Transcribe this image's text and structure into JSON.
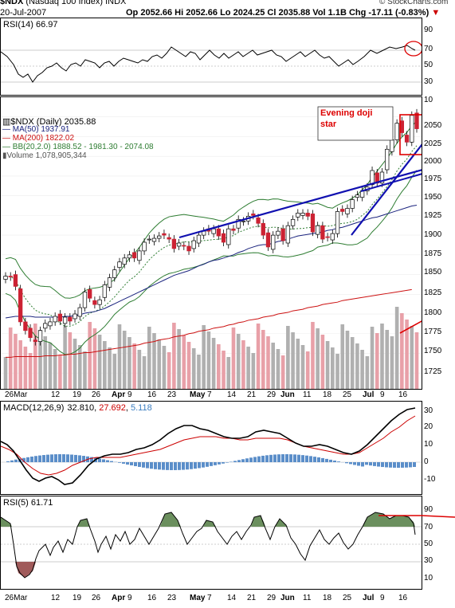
{
  "header": {
    "symbol": "$NDX",
    "index_name": "(Nasdaq 100 Index)",
    "exchange": "INDX",
    "source": "© StockCharts.com",
    "date": "20-Jul-2007",
    "op_label": "Op",
    "op": "2052.66",
    "hi_label": "Hi",
    "hi": "2052.66",
    "lo_label": "Lo",
    "lo": "2024.25",
    "cl_label": "Cl",
    "cl": "2035.88",
    "vol_label": "Vol",
    "vol": "1.1B",
    "chg_label": "Chg",
    "chg": "-17.11 (-0.83%)"
  },
  "rsi14": {
    "label": "RSI(14) 66.97",
    "ticks": [
      "90",
      "70",
      "50",
      "30"
    ]
  },
  "main": {
    "legend_title": "$NDX (Daily) 2035.88",
    "ma50": "MA(50) 1937.91",
    "ma200": "MA(200) 1822.02",
    "bb": "BB(20,2.0) 1888.52 - 1981.30 - 2074.08",
    "volume": "Volume 1,078,905,344",
    "annotation": "Evening doji star",
    "ticks": [
      "10",
      "2050",
      "2025",
      "2000",
      "1975",
      "1950",
      "1925",
      "1900",
      "1875",
      "1850",
      "1825",
      "1800",
      "1775",
      "1750",
      "1725"
    ]
  },
  "macd": {
    "label_prefix": "MACD(12,26,9)",
    "v1": "32.810",
    "v2": "27.692",
    "v3": "5.118",
    "ticks": [
      "30",
      "20",
      "10",
      "0",
      "-10"
    ]
  },
  "rsi5": {
    "label": "RSI(5) 61.71",
    "ticks": [
      "90",
      "70",
      "50",
      "30",
      "10"
    ]
  },
  "xaxis": {
    "labels": [
      "26Mar",
      "12",
      "19",
      "26",
      "Apr",
      "9",
      "16",
      "23",
      "May",
      "7",
      "14",
      "21",
      "29",
      "Jun",
      "11",
      "18",
      "25",
      "Jul",
      "9",
      "16"
    ]
  },
  "colors": {
    "up": "#ffffff",
    "down": "#cc2233",
    "ma50": "#1a237e",
    "ma200": "#cc1111",
    "bb": "#2e7d32",
    "volume": "#b0b0b0",
    "volume_down": "#e8a0a8",
    "trendline": "#1010b0",
    "macd_hist": "#5b8ec9",
    "rsi_fill_up": "#6b8f5e",
    "rsi_fill_down": "#a05a5a"
  },
  "chart_data": {
    "type": "candlestick",
    "x": [
      "Mar 22",
      "Mar 23",
      "Mar 26",
      "Mar 27",
      "Mar 28",
      "Mar 29",
      "Mar 30",
      "Apr 2",
      "Apr 3",
      "Apr 4",
      "Apr 5",
      "Apr 9",
      "Apr 10",
      "Apr 11",
      "Apr 12",
      "Apr 13",
      "Apr 16",
      "Apr 17",
      "Apr 18",
      "Apr 19",
      "Apr 20",
      "Apr 23",
      "Apr 24",
      "Apr 25",
      "Apr 26",
      "Apr 27",
      "Apr 30",
      "May 1",
      "May 2",
      "May 3",
      "May 4",
      "May 7",
      "May 8",
      "May 9",
      "May 10",
      "May 11",
      "May 14",
      "May 15",
      "May 16",
      "May 17",
      "May 18",
      "May 21",
      "May 22",
      "May 23",
      "May 24",
      "May 25",
      "May 29",
      "May 30",
      "May 31",
      "Jun 1",
      "Jun 4",
      "Jun 5",
      "Jun 6",
      "Jun 7",
      "Jun 8",
      "Jun 11",
      "Jun 12",
      "Jun 13",
      "Jun 14",
      "Jun 15",
      "Jun 18",
      "Jun 19",
      "Jun 20",
      "Jun 21",
      "Jun 22",
      "Jun 25",
      "Jun 26",
      "Jun 27",
      "Jun 28",
      "Jun 29",
      "Jul 2",
      "Jul 3",
      "Jul 5",
      "Jul 6",
      "Jul 9",
      "Jul 10",
      "Jul 11",
      "Jul 12",
      "Jul 13",
      "Jul 16",
      "Jul 17",
      "Jul 18",
      "Jul 19",
      "Jul 20"
    ],
    "close": [
      1848,
      1847,
      1835,
      1790,
      1779,
      1770,
      1765,
      1779,
      1788,
      1790,
      1797,
      1791,
      1796,
      1791,
      1800,
      1808,
      1828,
      1820,
      1812,
      1818,
      1837,
      1846,
      1856,
      1866,
      1871,
      1875,
      1871,
      1880,
      1891,
      1895,
      1896,
      1899,
      1900,
      1895,
      1883,
      1890,
      1886,
      1880,
      1893,
      1900,
      1905,
      1905,
      1908,
      1899,
      1891,
      1908,
      1906,
      1920,
      1918,
      1924,
      1925,
      1915,
      1900,
      1885,
      1900,
      1905,
      1893,
      1912,
      1920,
      1928,
      1928,
      1924,
      1904,
      1912,
      1895,
      1897,
      1902,
      1930,
      1930,
      1934,
      1945,
      1951,
      1956,
      1961,
      1982,
      1966,
      1980,
      2009,
      2021,
      2042,
      2030,
      2018,
      2052,
      2035
    ],
    "ma50": [
      1795,
      1796,
      1797,
      1797,
      1797,
      1797,
      1796,
      1796,
      1796,
      1796,
      1796,
      1796,
      1797,
      1797,
      1798,
      1799,
      1801,
      1802,
      1803,
      1805,
      1807,
      1810,
      1813,
      1816,
      1819,
      1822,
      1825,
      1828,
      1831,
      1834,
      1837,
      1840,
      1843,
      1846,
      1849,
      1851,
      1853,
      1855,
      1858,
      1861,
      1863,
      1866,
      1868,
      1869,
      1871,
      1873,
      1875,
      1878,
      1880,
      1883,
      1885,
      1887,
      1888,
      1888,
      1890,
      1892,
      1893,
      1895,
      1897,
      1899,
      1900,
      1901,
      1902,
      1903,
      1904,
      1906,
      1907,
      1909,
      1910,
      1912,
      1914,
      1916,
      1918,
      1920,
      1922,
      1923,
      1925,
      1927,
      1929,
      1931,
      1933,
      1935,
      1937,
      1938
    ],
    "ma200": [
      1745,
      1745,
      1746,
      1746,
      1746,
      1746,
      1746,
      1746,
      1747,
      1747,
      1747,
      1748,
      1748,
      1749,
      1749,
      1750,
      1751,
      1751,
      1752,
      1753,
      1754,
      1755,
      1756,
      1757,
      1758,
      1759,
      1760,
      1761,
      1763,
      1764,
      1765,
      1767,
      1768,
      1769,
      1771,
      1772,
      1773,
      1775,
      1776,
      1778,
      1779,
      1780,
      1782,
      1783,
      1784,
      1786,
      1787,
      1789,
      1790,
      1792,
      1793,
      1794,
      1796,
      1797,
      1798,
      1800,
      1801,
      1802,
      1804,
      1805,
      1806,
      1808,
      1809,
      1810,
      1812,
      1813,
      1814,
      1815,
      1817,
      1818,
      1819,
      1820,
      1821,
      1822,
      1823,
      1824,
      1825,
      1826,
      1827,
      1828,
      1829,
      1830,
      1831,
      1822
    ],
    "annotations": [
      "Evening doji star"
    ],
    "ylim": [
      1705,
      2075
    ]
  }
}
